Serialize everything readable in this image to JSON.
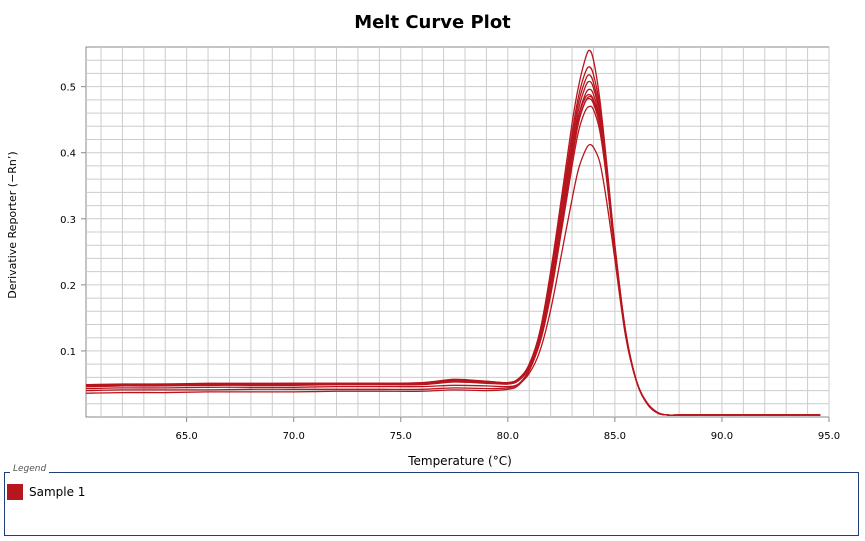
{
  "colors": {
    "series": "#b7161f",
    "grid": "#cccccc",
    "axis": "#8a8a8a",
    "legend_border": "#1f3f7a"
  },
  "legend": {
    "caption": "Legend",
    "items": [
      {
        "label": "Sample 1"
      }
    ]
  },
  "chart_data": {
    "type": "line",
    "title": "Melt Curve Plot",
    "xlabel": "Temperature (°C)",
    "ylabel": "Derivative Reporter (−Rn’)",
    "xlim": [
      60.3,
      95.0
    ],
    "ylim": [
      0.0,
      0.56
    ],
    "x_ticks": [
      65,
      70,
      75,
      80,
      85,
      90,
      95
    ],
    "x_tick_labels": [
      "65.0",
      "70.0",
      "75.0",
      "80.0",
      "85.0",
      "90.0",
      "95.0"
    ],
    "y_ticks": [
      0.1,
      0.2,
      0.3,
      0.4,
      0.5
    ],
    "y_tick_labels": [
      "0.1",
      "0.2",
      "0.3",
      "0.4",
      "0.5"
    ],
    "grid": true,
    "legend_position": "bottom",
    "x": [
      60.3,
      62,
      64,
      66,
      68,
      70,
      72,
      74,
      76,
      77.5,
      79,
      80,
      80.5,
      81,
      81.5,
      82,
      82.5,
      83,
      83.3,
      83.6,
      83.8,
      84,
      84.3,
      84.6,
      85,
      85.5,
      86,
      86.5,
      87,
      87.5,
      88,
      90,
      92,
      94.6
    ],
    "series": [
      {
        "y": [
          0.049,
          0.05,
          0.05,
          0.051,
          0.051,
          0.051,
          0.051,
          0.051,
          0.052,
          0.057,
          0.054,
          0.052,
          0.058,
          0.08,
          0.13,
          0.22,
          0.33,
          0.445,
          0.5,
          0.54,
          0.555,
          0.54,
          0.48,
          0.39,
          0.26,
          0.13,
          0.055,
          0.02,
          0.006,
          0.003,
          0.003,
          0.003,
          0.003,
          0.003
        ]
      },
      {
        "y": [
          0.048,
          0.049,
          0.05,
          0.05,
          0.05,
          0.051,
          0.051,
          0.051,
          0.052,
          0.056,
          0.054,
          0.052,
          0.058,
          0.079,
          0.127,
          0.215,
          0.32,
          0.43,
          0.485,
          0.52,
          0.53,
          0.518,
          0.47,
          0.385,
          0.258,
          0.13,
          0.056,
          0.021,
          0.006,
          0.003,
          0.003,
          0.003,
          0.003,
          0.003
        ]
      },
      {
        "y": [
          0.048,
          0.049,
          0.049,
          0.05,
          0.05,
          0.05,
          0.05,
          0.05,
          0.051,
          0.055,
          0.053,
          0.051,
          0.057,
          0.078,
          0.124,
          0.208,
          0.312,
          0.42,
          0.475,
          0.508,
          0.518,
          0.506,
          0.462,
          0.38,
          0.256,
          0.128,
          0.055,
          0.021,
          0.006,
          0.003,
          0.003,
          0.003,
          0.003,
          0.003
        ]
      },
      {
        "y": [
          0.047,
          0.048,
          0.049,
          0.049,
          0.05,
          0.05,
          0.05,
          0.05,
          0.051,
          0.055,
          0.053,
          0.051,
          0.057,
          0.077,
          0.121,
          0.202,
          0.304,
          0.41,
          0.465,
          0.498,
          0.508,
          0.498,
          0.455,
          0.376,
          0.254,
          0.128,
          0.055,
          0.021,
          0.006,
          0.003,
          0.003,
          0.003,
          0.003,
          0.003
        ]
      },
      {
        "y": [
          0.047,
          0.048,
          0.048,
          0.049,
          0.049,
          0.049,
          0.05,
          0.05,
          0.05,
          0.054,
          0.052,
          0.051,
          0.056,
          0.076,
          0.118,
          0.196,
          0.296,
          0.4,
          0.455,
          0.487,
          0.496,
          0.488,
          0.448,
          0.372,
          0.252,
          0.127,
          0.055,
          0.021,
          0.006,
          0.003,
          0.003,
          0.003,
          0.003,
          0.003
        ]
      },
      {
        "y": [
          0.046,
          0.047,
          0.048,
          0.048,
          0.049,
          0.049,
          0.049,
          0.049,
          0.05,
          0.054,
          0.052,
          0.05,
          0.056,
          0.075,
          0.115,
          0.19,
          0.288,
          0.39,
          0.445,
          0.476,
          0.485,
          0.478,
          0.44,
          0.368,
          0.25,
          0.126,
          0.055,
          0.021,
          0.006,
          0.003,
          0.003,
          0.003,
          0.003,
          0.003
        ]
      },
      {
        "y": [
          0.046,
          0.047,
          0.047,
          0.048,
          0.048,
          0.048,
          0.049,
          0.049,
          0.049,
          0.053,
          0.051,
          0.05,
          0.055,
          0.074,
          0.112,
          0.184,
          0.28,
          0.38,
          0.432,
          0.462,
          0.47,
          0.465,
          0.432,
          0.364,
          0.248,
          0.125,
          0.055,
          0.021,
          0.006,
          0.003,
          0.003,
          0.003,
          0.003,
          0.003
        ]
      },
      {
        "y": [
          0.043,
          0.044,
          0.044,
          0.045,
          0.045,
          0.045,
          0.046,
          0.046,
          0.046,
          0.048,
          0.047,
          0.046,
          0.05,
          0.066,
          0.1,
          0.162,
          0.245,
          0.33,
          0.375,
          0.402,
          0.412,
          0.408,
          0.385,
          0.33,
          0.238,
          0.122,
          0.055,
          0.022,
          0.007,
          0.003,
          0.003,
          0.003,
          0.003,
          0.003
        ]
      },
      {
        "y": [
          0.04,
          0.041,
          0.041,
          0.041,
          0.042,
          0.042,
          0.042,
          0.042,
          0.042,
          0.044,
          0.043,
          0.044,
          0.05,
          0.072,
          0.118,
          0.2,
          0.305,
          0.405,
          0.455,
          0.482,
          0.488,
          0.48,
          0.445,
          0.37,
          0.25,
          0.126,
          0.055,
          0.021,
          0.006,
          0.003,
          0.003,
          0.003,
          0.003,
          0.003
        ]
      },
      {
        "y": [
          0.036,
          0.037,
          0.037,
          0.038,
          0.038,
          0.038,
          0.039,
          0.039,
          0.039,
          0.041,
          0.04,
          0.042,
          0.048,
          0.07,
          0.114,
          0.194,
          0.296,
          0.396,
          0.448,
          0.476,
          0.482,
          0.474,
          0.44,
          0.366,
          0.248,
          0.125,
          0.055,
          0.021,
          0.006,
          0.003,
          0.003,
          0.003,
          0.003,
          0.003
        ]
      }
    ]
  }
}
